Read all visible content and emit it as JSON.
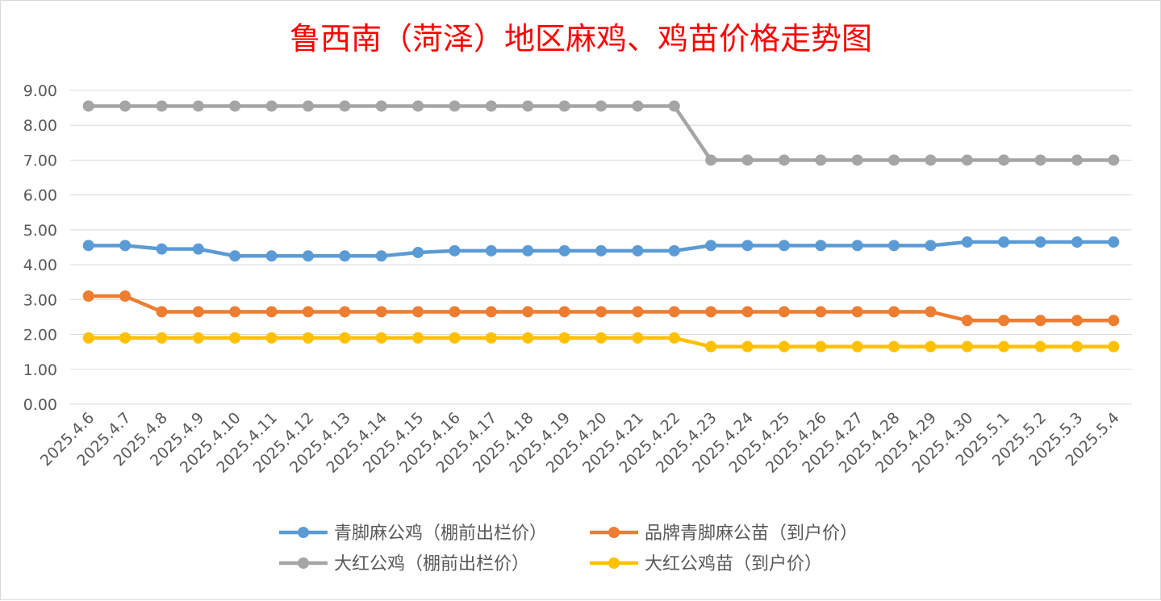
{
  "chart_data": {
    "type": "line",
    "title": "鲁西南（菏泽）地区麻鸡、鸡苗价格走势图",
    "xlabel": "",
    "ylabel": "",
    "ylim": [
      0,
      9
    ],
    "yticks": [
      "0.00",
      "1.00",
      "2.00",
      "3.00",
      "4.00",
      "5.00",
      "6.00",
      "7.00",
      "8.00",
      "9.00"
    ],
    "grid": true,
    "legend_position": "bottom",
    "categories": [
      "2025.4.6",
      "2025.4.7",
      "2025.4.8",
      "2025.4.9",
      "2025.4.10",
      "2025.4.11",
      "2025.4.12",
      "2025.4.13",
      "2025.4.14",
      "2025.4.15",
      "2025.4.16",
      "2025.4.17",
      "2025.4.18",
      "2025.4.19",
      "2025.4.20",
      "2025.4.21",
      "2025.4.22",
      "2025.4.23",
      "2025.4.24",
      "2025.4.25",
      "2025.4.26",
      "2025.4.27",
      "2025.4.28",
      "2025.4.29",
      "2025.4.30",
      "2025.5.1",
      "2025.5.2",
      "2025.5.3",
      "2025.5.4"
    ],
    "series": [
      {
        "name": "青脚麻公鸡（棚前出栏价）",
        "color": "#5b9bd5",
        "values": [
          4.55,
          4.55,
          4.45,
          4.45,
          4.25,
          4.25,
          4.25,
          4.25,
          4.25,
          4.35,
          4.4,
          4.4,
          4.4,
          4.4,
          4.4,
          4.4,
          4.4,
          4.55,
          4.55,
          4.55,
          4.55,
          4.55,
          4.55,
          4.55,
          4.65,
          4.65,
          4.65,
          4.65,
          4.65
        ]
      },
      {
        "name": "品牌青脚麻公苗（到户价）",
        "color": "#ed7d31",
        "values": [
          3.1,
          3.1,
          2.65,
          2.65,
          2.65,
          2.65,
          2.65,
          2.65,
          2.65,
          2.65,
          2.65,
          2.65,
          2.65,
          2.65,
          2.65,
          2.65,
          2.65,
          2.65,
          2.65,
          2.65,
          2.65,
          2.65,
          2.65,
          2.65,
          2.4,
          2.4,
          2.4,
          2.4,
          2.4
        ]
      },
      {
        "name": "大红公鸡（棚前出栏价）",
        "color": "#a5a5a5",
        "values": [
          8.55,
          8.55,
          8.55,
          8.55,
          8.55,
          8.55,
          8.55,
          8.55,
          8.55,
          8.55,
          8.55,
          8.55,
          8.55,
          8.55,
          8.55,
          8.55,
          8.55,
          7.0,
          7.0,
          7.0,
          7.0,
          7.0,
          7.0,
          7.0,
          7.0,
          7.0,
          7.0,
          7.0,
          7.0
        ]
      },
      {
        "name": "大红公鸡苗（到户价）",
        "color": "#ffc000",
        "values": [
          1.9,
          1.9,
          1.9,
          1.9,
          1.9,
          1.9,
          1.9,
          1.9,
          1.9,
          1.9,
          1.9,
          1.9,
          1.9,
          1.9,
          1.9,
          1.9,
          1.9,
          1.65,
          1.65,
          1.65,
          1.65,
          1.65,
          1.65,
          1.65,
          1.65,
          1.65,
          1.65,
          1.65,
          1.65
        ]
      }
    ],
    "title_color": "#ff0000",
    "gridline_color": "#d9d9d9",
    "axis_text_color": "#595959"
  }
}
